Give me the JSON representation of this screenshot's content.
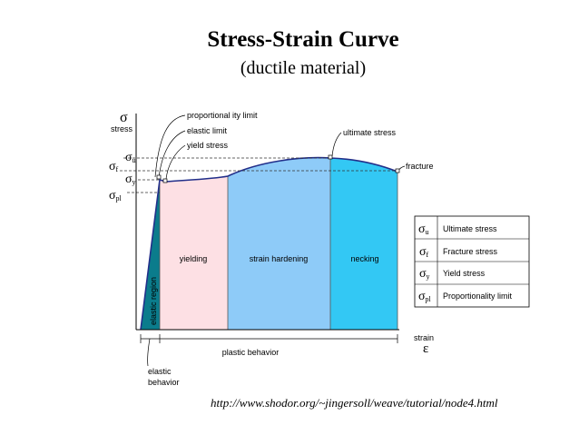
{
  "title": "Stress-Strain Curve",
  "subtitle": "(ductile material)",
  "source_url": "http://www.shodor.org/~jingersoll/weave/tutorial/node4.html",
  "axes": {
    "y_symbol": "σ",
    "y_label": "stress",
    "x_label": "strain",
    "x_symbol": "ε"
  },
  "stress_levels": {
    "sigma": "σ",
    "u_sub": "u",
    "f_sub": "f",
    "y_sub": "y",
    "pl_sub": "pl"
  },
  "callouts": {
    "proportionality_limit": "proportional ity limit",
    "elastic_limit": "elastic limit",
    "yield_stress": "yield stress",
    "ultimate_stress": "ultimate stress",
    "fracture": "fracture"
  },
  "regions": {
    "elastic": "elastic region",
    "yielding": "yielding",
    "strain_hardening": "strain hardening",
    "necking": "necking"
  },
  "bottom": {
    "plastic_behavior": "plastic behavior",
    "elastic_behavior_line1": "elastic",
    "elastic_behavior_line2": "behavior"
  },
  "legend": {
    "rows": [
      {
        "sub": "u",
        "label": "Ultimate stress"
      },
      {
        "sub": "f",
        "label": "Fracture stress"
      },
      {
        "sub": "y",
        "label": "Yield stress"
      },
      {
        "sub": "pl",
        "label": "Proportionality limit"
      }
    ]
  },
  "colors": {
    "elastic_region": "#0b7c8c",
    "yielding_region": "#fde0e4",
    "strain_hardening_region": "#8ecbf8",
    "necking_region": "#33c8f4",
    "curve": "#222f8a"
  }
}
